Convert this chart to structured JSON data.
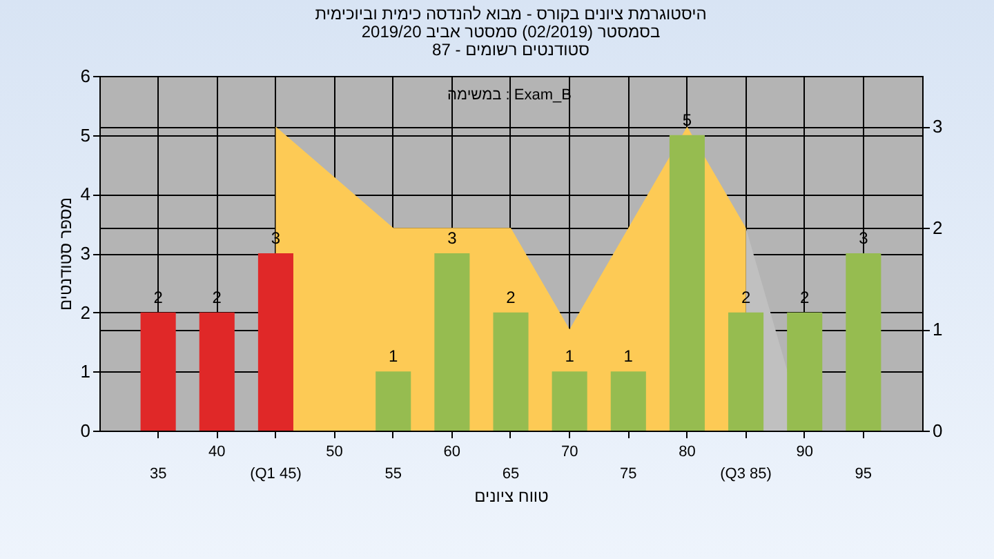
{
  "chart_data": {
    "type": "bar",
    "title": [
      "היסטוגרמת ציונים בקורס - מבוא להנדסה כימית וביוכימית",
      "בסמסטר  (02/2019)  סמסטר אביב 2019/20",
      "סטודנטים רשומים - 87"
    ],
    "xlabel": "טווח ציונים",
    "ylabel": "מספר סטודנטים",
    "categories": [
      "35",
      "40",
      "(Q1 45)",
      "50",
      "55",
      "60",
      "65",
      "70",
      "75",
      "80",
      "(Q3 85)",
      "90",
      "95"
    ],
    "series": [
      {
        "type": "area",
        "axis": "y2",
        "color": "#c0c0c0",
        "values": [
          null,
          null,
          null,
          null,
          null,
          null,
          null,
          null,
          null,
          null,
          2,
          0,
          null
        ]
      },
      {
        "type": "area",
        "axis": "y2",
        "color": "#fdca55",
        "values": [
          null,
          null,
          3,
          2.5,
          2,
          2,
          2,
          1,
          2,
          3,
          2,
          null,
          null
        ]
      },
      {
        "value_labels": [
          "2",
          "2",
          "3",
          null,
          "1",
          "3",
          "2",
          "1",
          "1",
          "5",
          "2",
          "2",
          "3"
        ],
        "colors": [
          "#e02828",
          "#e02828",
          "#e02828",
          null,
          "#96bc50",
          "#96bc50",
          "#96bc50",
          "#96bc50",
          "#96bc50",
          "#96bc50",
          "#96bc50",
          "#96bc50",
          "#96bc50"
        ],
        "values": [
          2,
          2,
          3,
          null,
          1,
          3,
          2,
          1,
          1,
          5,
          2,
          2,
          3
        ]
      }
    ],
    "ylim": [
      0,
      6
    ],
    "yticks": [
      0,
      1,
      2,
      3,
      4,
      5,
      6
    ],
    "y2lim": [
      0,
      3.5
    ],
    "y2ticks": [
      0,
      1,
      2,
      3
    ],
    "grid": true,
    "annotations": [
      "במשימה : Exam_B"
    ]
  }
}
